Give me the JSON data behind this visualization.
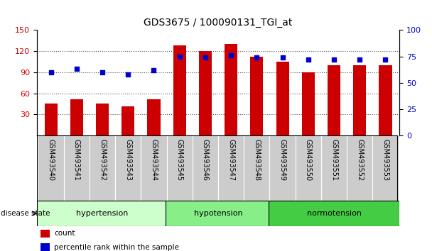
{
  "title": "GDS3675 / 100090131_TGI_at",
  "samples": [
    "GSM493540",
    "GSM493541",
    "GSM493542",
    "GSM493543",
    "GSM493544",
    "GSM493545",
    "GSM493546",
    "GSM493547",
    "GSM493548",
    "GSM493549",
    "GSM493550",
    "GSM493551",
    "GSM493552",
    "GSM493553"
  ],
  "bar_values": [
    46,
    52,
    46,
    42,
    52,
    128,
    120,
    130,
    112,
    105,
    90,
    100,
    100,
    100
  ],
  "dot_values": [
    60,
    63,
    60,
    58,
    62,
    75,
    74,
    76,
    74,
    74,
    72,
    72,
    72,
    72
  ],
  "bar_color": "#cc0000",
  "dot_color": "#0000cc",
  "ylim_left": [
    0,
    150
  ],
  "ylim_right": [
    0,
    100
  ],
  "yticks_left": [
    30,
    60,
    90,
    120,
    150
  ],
  "yticks_right": [
    0,
    25,
    50,
    75,
    100
  ],
  "groups": [
    {
      "label": "hypertension",
      "start": 0,
      "end": 5,
      "color": "#ccffcc"
    },
    {
      "label": "hypotension",
      "start": 5,
      "end": 9,
      "color": "#88ee88"
    },
    {
      "label": "normotension",
      "start": 9,
      "end": 14,
      "color": "#44cc44"
    }
  ],
  "disease_label": "disease state",
  "legend_bar": "count",
  "legend_dot": "percentile rank within the sample",
  "bg_color": "#ffffff",
  "tick_label_color_left": "#cc0000",
  "tick_label_color_right": "#0000cc",
  "grid_color": "#555555",
  "bar_width": 0.5,
  "sample_box_color": "#cccccc",
  "sample_box_edge": "#888888"
}
